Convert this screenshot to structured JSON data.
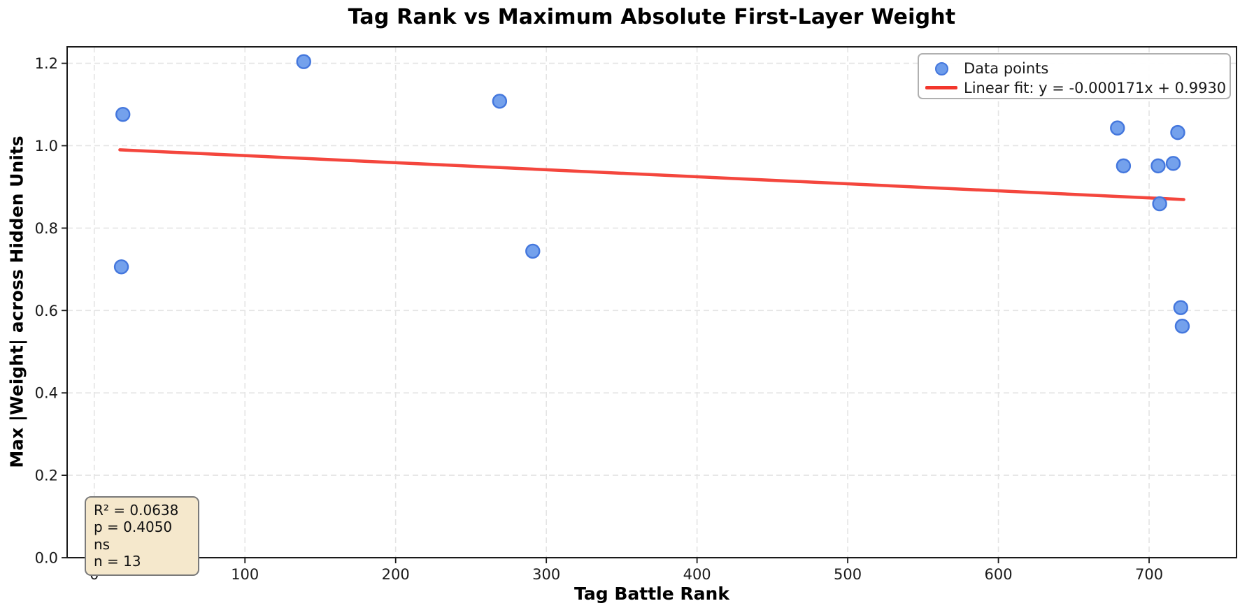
{
  "chart_data": {
    "type": "scatter",
    "title": "Tag Rank vs Maximum Absolute First-Layer Weight",
    "xlabel": "Tag Battle Rank",
    "ylabel": "Max |Weight| across Hidden Units",
    "xlim": [
      -18,
      758
    ],
    "ylim": [
      0,
      1.24
    ],
    "xticks": [
      0,
      100,
      200,
      300,
      400,
      500,
      600,
      700
    ],
    "yticks": [
      0.0,
      0.2,
      0.4,
      0.6,
      0.8,
      1.0,
      1.2
    ],
    "grid": true,
    "legend_position": "top-right",
    "legend": [
      "Data points",
      "Linear fit: y = -0.000171x + 0.9930"
    ],
    "series": [
      {
        "name": "Data points",
        "type": "scatter",
        "points": [
          [
            19,
            1.076
          ],
          [
            18,
            0.706
          ],
          [
            139,
            1.204
          ],
          [
            269,
            1.108
          ],
          [
            291,
            0.744
          ],
          [
            679,
            1.043
          ],
          [
            719,
            1.032
          ],
          [
            683,
            0.951
          ],
          [
            706,
            0.951
          ],
          [
            716,
            0.957
          ],
          [
            707,
            0.859
          ],
          [
            721,
            0.607
          ],
          [
            722,
            0.562
          ]
        ]
      },
      {
        "name": "Linear fit",
        "type": "line",
        "slope": -0.000171,
        "intercept": 0.993,
        "x_range": [
          17,
          723
        ]
      }
    ],
    "annotation": {
      "r2": "R² = 0.0638",
      "p": "p = 0.4050 ns",
      "n": "n = 13"
    },
    "colors": {
      "marker_fill": "#6d9ceb",
      "marker_edge": "#4477dd",
      "fit_line": "#f3362c",
      "grid": "#e4e4e4",
      "axis": "#1a1a1a",
      "tick_label": "#1a1a1a",
      "annotation_bg": "#f5e8cc",
      "annotation_border": "#7a7a7a",
      "legend_border": "#b0b0b0"
    }
  }
}
